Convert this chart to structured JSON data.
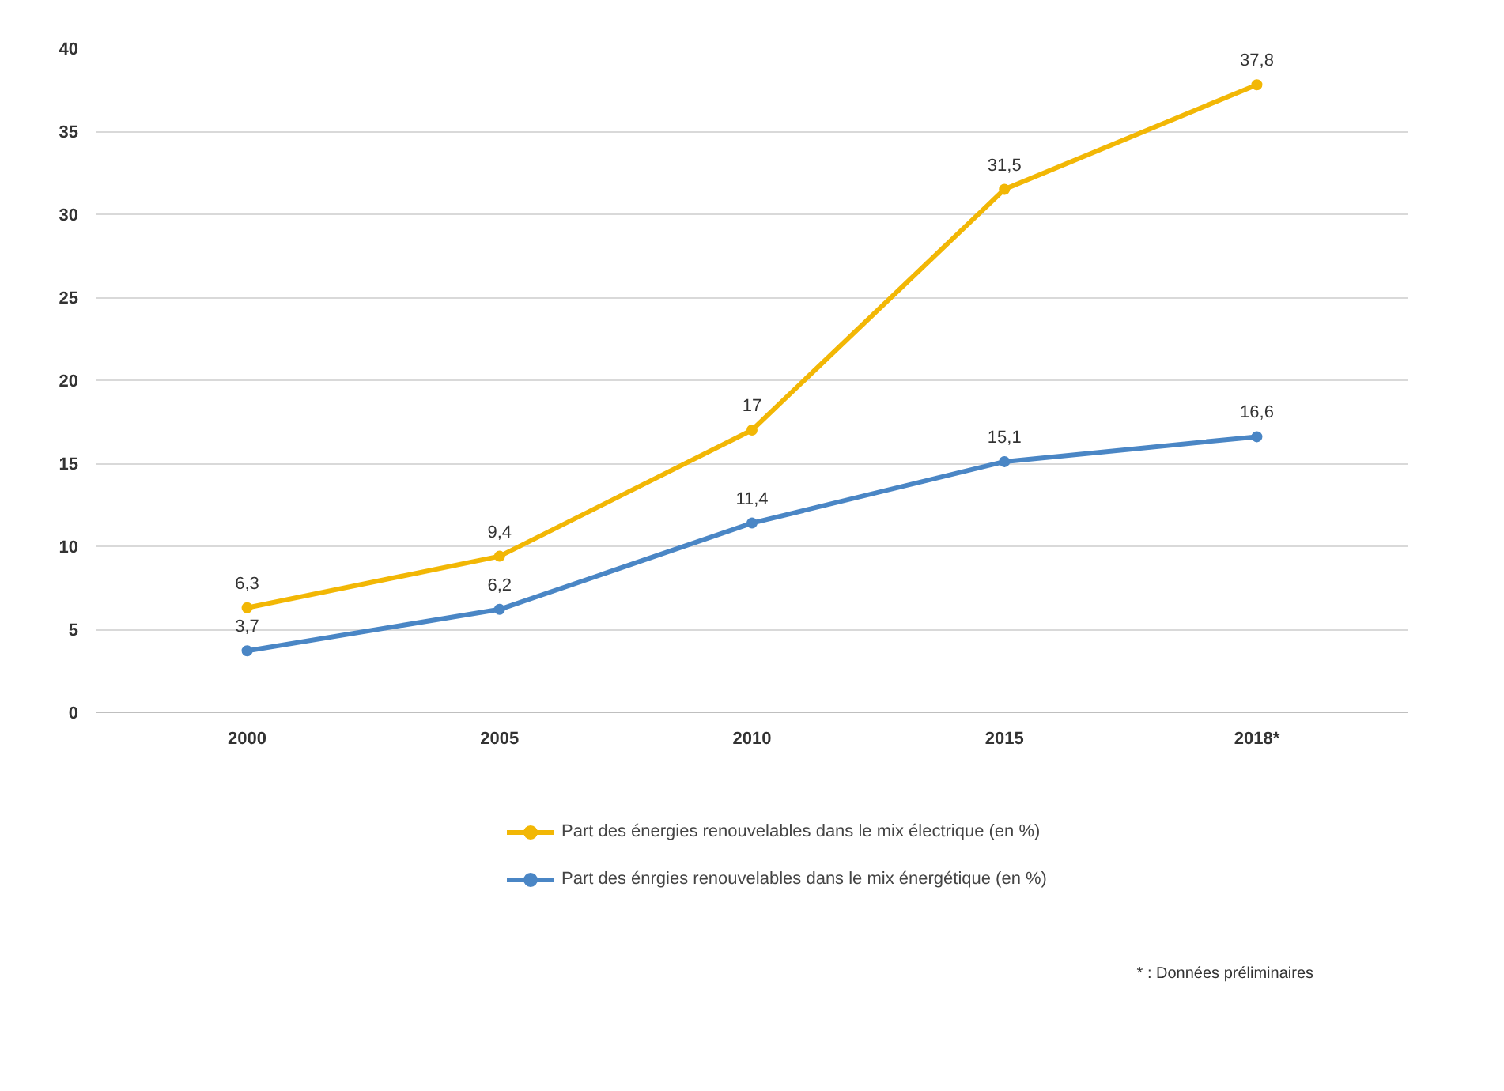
{
  "chart_data": {
    "type": "line",
    "categories": [
      "2000",
      "2005",
      "2010",
      "2015",
      "2018*"
    ],
    "series": [
      {
        "name": "Part des énergies renouvelables dans le mix électrique (en %)",
        "color": "#f2b705",
        "values": [
          6.3,
          9.4,
          17,
          31.5,
          37.8
        ],
        "value_labels": [
          "6,3",
          "9,4",
          "17",
          "31,5",
          "37,8"
        ]
      },
      {
        "name": "Part des énrgies renouvelables dans le mix énergétique (en %)",
        "color": "#4a86c5",
        "values": [
          3.7,
          6.2,
          11.4,
          15.1,
          16.6
        ],
        "value_labels": [
          "3,7",
          "6,2",
          "11,4",
          "15,1",
          "16,6"
        ]
      }
    ],
    "ylim": [
      0,
      40
    ],
    "yticks": [
      0,
      5,
      10,
      15,
      20,
      25,
      30,
      35,
      40
    ],
    "grid": "y",
    "legend": "bottom",
    "marker": "circle",
    "line_style": "solid",
    "annotations": [
      "* : Données préliminaires"
    ]
  }
}
